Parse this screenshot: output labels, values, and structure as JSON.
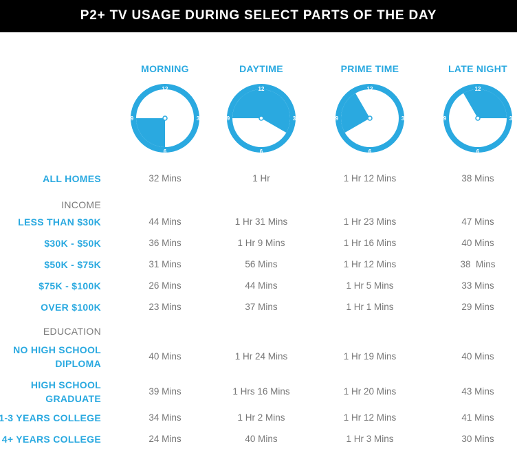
{
  "header": {
    "title": "P2+ TV USAGE DURING SELECT PARTS OF THE DAY"
  },
  "colors": {
    "accent": "#2aa9e0",
    "title_bg": "#000000",
    "text": "#777777"
  },
  "chart_data": {
    "type": "table",
    "columns": [
      {
        "label": "MORNING",
        "clock": {
          "from_hour": 6,
          "to_hour": 9,
          "numbers": [
            "12",
            "3",
            "6",
            "9"
          ]
        }
      },
      {
        "label": "DAYTIME",
        "clock": {
          "from_hour": 9,
          "to_hour": 16,
          "numbers": [
            "12",
            "3",
            "6",
            "9"
          ]
        }
      },
      {
        "label": "PRIME TIME",
        "clock": {
          "from_hour": 8,
          "to_hour": 11,
          "numbers": [
            "12",
            "3",
            "6",
            "9"
          ]
        }
      },
      {
        "label": "LATE NIGHT",
        "clock": {
          "from_hour": 11,
          "to_hour": 15,
          "numbers": [
            "12",
            "3",
            "6",
            "9"
          ]
        }
      }
    ],
    "rows": [
      {
        "label": "ALL HOMES",
        "values": [
          "32 Mins",
          "1 Hr",
          "1 Hr 12 Mins",
          "38 Mins"
        ]
      },
      {
        "label": "INCOME",
        "section": true
      },
      {
        "label": "LESS THAN $30K",
        "values": [
          "44 Mins",
          "1 Hr 31 Mins",
          "1 Hr 23 Mins",
          "47 Mins"
        ]
      },
      {
        "label": "$30K - $50K",
        "values": [
          "36 Mins",
          "1 Hr 9 Mins",
          "1 Hr 16 Mins",
          "40 Mins"
        ]
      },
      {
        "label": "$50K - $75K",
        "values": [
          "31 Mins",
          "56 Mins",
          "1 Hr 12 Mins",
          "38  Mins"
        ]
      },
      {
        "label": "$75K - $100K",
        "values": [
          "26 Mins",
          "44 Mins",
          "1 Hr 5 Mins",
          "33 Mins"
        ]
      },
      {
        "label": "OVER $100K",
        "values": [
          "23 Mins",
          "37 Mins",
          "1 Hr 1 Mins",
          "29 Mins"
        ]
      },
      {
        "label": "EDUCATION",
        "section": true
      },
      {
        "label": "NO HIGH SCHOOL\nDIPLOMA",
        "values": [
          "40 Mins",
          "1 Hr 24 Mins",
          "1 Hr 19 Mins",
          "40 Mins"
        ]
      },
      {
        "label": "HIGH SCHOOL\nGRADUATE",
        "values": [
          "39 Mins",
          "1 Hrs 16 Mins",
          "1 Hr 20 Mins",
          "43 Mins"
        ]
      },
      {
        "label": "1-3 YEARS COLLEGE",
        "values": [
          "34 Mins",
          "1 Hr 2 Mins",
          "1 Hr 12 Mins",
          "41 Mins"
        ]
      },
      {
        "label": "4+ YEARS COLLEGE",
        "values": [
          "24 Mins",
          "40 Mins",
          "1 Hr 3 Mins",
          "30 Mins"
        ]
      }
    ]
  }
}
